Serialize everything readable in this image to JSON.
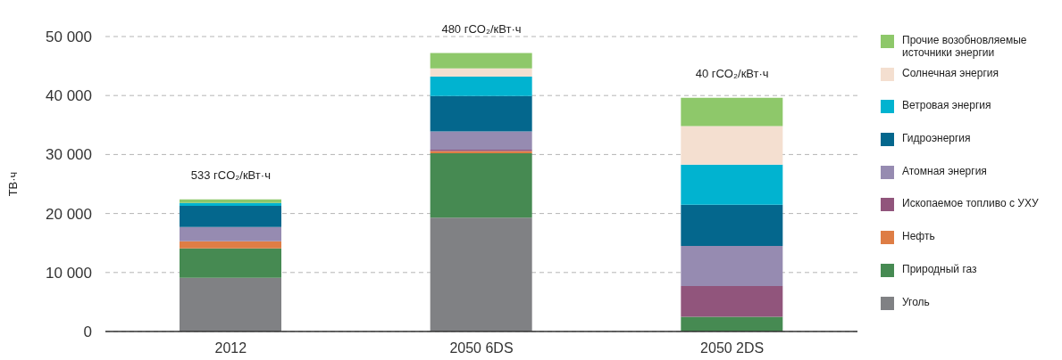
{
  "chart_data": {
    "type": "bar",
    "stacked": true,
    "ylabel": "ТВ·ч",
    "categories": [
      "2012",
      "2050 6DS",
      "2050 2DS"
    ],
    "series": [
      {
        "name": "Уголь",
        "color": "#808184",
        "values": [
          9100,
          19300,
          0
        ]
      },
      {
        "name": "Природный газ",
        "color": "#468a52",
        "values": [
          5000,
          10900,
          2500
        ]
      },
      {
        "name": "Нефть",
        "color": "#de7d45",
        "values": [
          1200,
          400,
          0
        ]
      },
      {
        "name": "Ископаемое топливо с УХУ",
        "color": "#91557c",
        "values": [
          0,
          200,
          5200
        ]
      },
      {
        "name": "Атомная энергия",
        "color": "#968bb1",
        "values": [
          2400,
          3100,
          6800
        ]
      },
      {
        "name": "Гидроэнергия",
        "color": "#04678d",
        "values": [
          3600,
          6000,
          7000
        ]
      },
      {
        "name": "Ветровая энергия",
        "color": "#01b3d0",
        "values": [
          500,
          3300,
          6800
        ]
      },
      {
        "name": "Солнечная энергия",
        "color": "#f4dfd0",
        "values": [
          0,
          1400,
          6500
        ]
      },
      {
        "name": "Прочие возобновляемые источники энергии",
        "color": "#8ec86a",
        "values": [
          600,
          2600,
          4800
        ]
      }
    ],
    "ylim": [
      0,
      50000
    ],
    "yticks": [
      0,
      {
        "value": 10000,
        "label": "10 000"
      },
      {
        "value": 20000,
        "label": "20 000"
      },
      {
        "value": 30000,
        "label": "30 000"
      },
      {
        "value": 40000,
        "label": "40 000"
      },
      {
        "value": 50000,
        "label": "50 000"
      }
    ],
    "grid": "y",
    "legend": "right",
    "annotations": [
      "533 гCO₂/кВт·ч",
      "480 гCO₂/кВт·ч",
      "40 гCO₂/кВт·ч"
    ]
  }
}
